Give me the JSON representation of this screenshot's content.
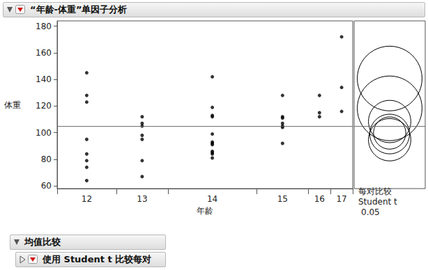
{
  "chart_data": {
    "type": "scatter",
    "title": "“年龄-体重”单因子分析",
    "x_label": "年龄",
    "y_label": "体重",
    "categories": [
      "12",
      "13",
      "14",
      "15",
      "16",
      "17"
    ],
    "values": [
      [
        145,
        128,
        123,
        95,
        84,
        79,
        74,
        64
      ],
      [
        112,
        107,
        105,
        98,
        95,
        79,
        67
      ],
      [
        142,
        119,
        113,
        112,
        99,
        93,
        92,
        91,
        86,
        85,
        84,
        81
      ],
      [
        128,
        112,
        111,
        107,
        105,
        104,
        92
      ],
      [
        128,
        115,
        112
      ],
      [
        172,
        134,
        116
      ]
    ],
    "color": "#000000",
    "marker": "circle",
    "ylim": [
      58,
      184
    ],
    "yticks": [
      60,
      80,
      100,
      120,
      140,
      160,
      180
    ],
    "grand_mean": 104.7,
    "comparison_circles": {
      "title": "每对比较",
      "method": "Student t",
      "alpha": 0.05,
      "centers": [
        99,
        94.7,
        99.75,
        108.4,
        118.3,
        140.7
      ],
      "radii": [
        14.9,
        15.9,
        12.1,
        15.9,
        24.3,
        24.3
      ]
    }
  },
  "outline": [
    {
      "title": "均值比较"
    },
    {
      "title": "使用 Student t 比较每对"
    }
  ]
}
